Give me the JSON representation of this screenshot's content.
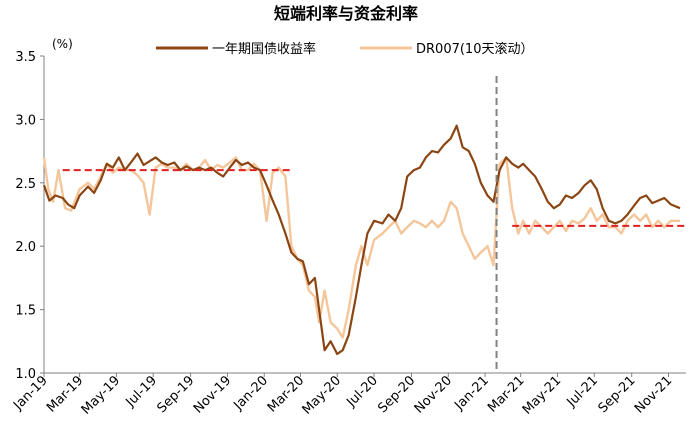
{
  "chart_data": {
    "type": "line",
    "title": "短端利率与资金利率",
    "unit_label": "(%)",
    "ylim": [
      1.0,
      3.5
    ],
    "yticks": [
      "1.0",
      "1.5",
      "2.0",
      "2.5",
      "3.0",
      "3.5"
    ],
    "xlim": [
      "2019-01-01",
      "2021-11-30"
    ],
    "xticks": [
      {
        "label": "Jan-19",
        "date": "2019-01-01"
      },
      {
        "label": "Mar-19",
        "date": "2019-03-01"
      },
      {
        "label": "May-19",
        "date": "2019-05-01"
      },
      {
        "label": "Jul-19",
        "date": "2019-07-01"
      },
      {
        "label": "Sep-19",
        "date": "2019-09-01"
      },
      {
        "label": "Nov-19",
        "date": "2019-11-01"
      },
      {
        "label": "Jan-20",
        "date": "2020-01-01"
      },
      {
        "label": "Mar-20",
        "date": "2020-03-01"
      },
      {
        "label": "May-20",
        "date": "2020-05-01"
      },
      {
        "label": "Jul-20",
        "date": "2020-07-01"
      },
      {
        "label": "Sep-20",
        "date": "2020-09-01"
      },
      {
        "label": "Nov-20",
        "date": "2020-11-01"
      },
      {
        "label": "Jan-21",
        "date": "2021-01-01"
      },
      {
        "label": "Mar-21",
        "date": "2021-03-01"
      },
      {
        "label": "May-21",
        "date": "2021-05-01"
      },
      {
        "label": "Jul-21",
        "date": "2021-07-01"
      },
      {
        "label": "Sep-21",
        "date": "2021-09-01"
      },
      {
        "label": "Nov-21",
        "date": "2021-11-01"
      }
    ],
    "legend_position": "top",
    "grid": false,
    "series": [
      {
        "name": "一年期国债收益率",
        "color": "#8B4513",
        "points": [
          [
            "2019-01-01",
            2.48
          ],
          [
            "2019-01-10",
            2.36
          ],
          [
            "2019-01-20",
            2.4
          ],
          [
            "2019-02-01",
            2.38
          ],
          [
            "2019-02-10",
            2.33
          ],
          [
            "2019-02-20",
            2.3
          ],
          [
            "2019-03-01",
            2.4
          ],
          [
            "2019-03-15",
            2.47
          ],
          [
            "2019-03-25",
            2.42
          ],
          [
            "2019-04-05",
            2.52
          ],
          [
            "2019-04-15",
            2.65
          ],
          [
            "2019-04-25",
            2.62
          ],
          [
            "2019-05-05",
            2.7
          ],
          [
            "2019-05-15",
            2.6
          ],
          [
            "2019-05-25",
            2.66
          ],
          [
            "2019-06-05",
            2.73
          ],
          [
            "2019-06-15",
            2.64
          ],
          [
            "2019-06-25",
            2.67
          ],
          [
            "2019-07-05",
            2.7
          ],
          [
            "2019-07-15",
            2.66
          ],
          [
            "2019-07-25",
            2.64
          ],
          [
            "2019-08-05",
            2.66
          ],
          [
            "2019-08-15",
            2.6
          ],
          [
            "2019-08-25",
            2.63
          ],
          [
            "2019-09-05",
            2.6
          ],
          [
            "2019-09-15",
            2.62
          ],
          [
            "2019-09-25",
            2.6
          ],
          [
            "2019-10-05",
            2.62
          ],
          [
            "2019-10-15",
            2.58
          ],
          [
            "2019-10-25",
            2.55
          ],
          [
            "2019-11-05",
            2.62
          ],
          [
            "2019-11-15",
            2.68
          ],
          [
            "2019-11-25",
            2.64
          ],
          [
            "2019-12-05",
            2.66
          ],
          [
            "2019-12-15",
            2.62
          ],
          [
            "2019-12-25",
            2.6
          ],
          [
            "2020-01-05",
            2.48
          ],
          [
            "2020-01-15",
            2.36
          ],
          [
            "2020-01-25",
            2.25
          ],
          [
            "2020-02-05",
            2.1
          ],
          [
            "2020-02-15",
            1.95
          ],
          [
            "2020-02-25",
            1.9
          ],
          [
            "2020-03-05",
            1.88
          ],
          [
            "2020-03-15",
            1.7
          ],
          [
            "2020-03-25",
            1.75
          ],
          [
            "2020-04-01",
            1.5
          ],
          [
            "2020-04-10",
            1.18
          ],
          [
            "2020-04-20",
            1.25
          ],
          [
            "2020-05-01",
            1.15
          ],
          [
            "2020-05-10",
            1.18
          ],
          [
            "2020-05-20",
            1.3
          ],
          [
            "2020-06-01",
            1.6
          ],
          [
            "2020-06-10",
            1.85
          ],
          [
            "2020-06-20",
            2.1
          ],
          [
            "2020-07-01",
            2.2
          ],
          [
            "2020-07-15",
            2.18
          ],
          [
            "2020-07-25",
            2.25
          ],
          [
            "2020-08-05",
            2.2
          ],
          [
            "2020-08-15",
            2.3
          ],
          [
            "2020-08-25",
            2.55
          ],
          [
            "2020-09-05",
            2.6
          ],
          [
            "2020-09-15",
            2.62
          ],
          [
            "2020-09-25",
            2.7
          ],
          [
            "2020-10-05",
            2.75
          ],
          [
            "2020-10-15",
            2.74
          ],
          [
            "2020-10-25",
            2.8
          ],
          [
            "2020-11-05",
            2.85
          ],
          [
            "2020-11-15",
            2.95
          ],
          [
            "2020-11-25",
            2.78
          ],
          [
            "2020-12-05",
            2.75
          ],
          [
            "2020-12-15",
            2.65
          ],
          [
            "2020-12-25",
            2.5
          ],
          [
            "2021-01-05",
            2.4
          ],
          [
            "2021-01-15",
            2.35
          ],
          [
            "2021-01-25",
            2.6
          ],
          [
            "2021-02-05",
            2.7
          ],
          [
            "2021-02-15",
            2.65
          ],
          [
            "2021-02-25",
            2.62
          ],
          [
            "2021-03-05",
            2.65
          ],
          [
            "2021-03-15",
            2.6
          ],
          [
            "2021-03-25",
            2.55
          ],
          [
            "2021-04-05",
            2.45
          ],
          [
            "2021-04-15",
            2.35
          ],
          [
            "2021-04-25",
            2.3
          ],
          [
            "2021-05-05",
            2.33
          ],
          [
            "2021-05-15",
            2.4
          ],
          [
            "2021-05-25",
            2.38
          ],
          [
            "2021-06-05",
            2.42
          ],
          [
            "2021-06-15",
            2.48
          ],
          [
            "2021-06-25",
            2.52
          ],
          [
            "2021-07-05",
            2.45
          ],
          [
            "2021-07-15",
            2.3
          ],
          [
            "2021-07-25",
            2.2
          ],
          [
            "2021-08-05",
            2.18
          ],
          [
            "2021-08-15",
            2.2
          ],
          [
            "2021-08-25",
            2.25
          ],
          [
            "2021-09-05",
            2.32
          ],
          [
            "2021-09-15",
            2.38
          ],
          [
            "2021-09-25",
            2.4
          ],
          [
            "2021-10-05",
            2.34
          ],
          [
            "2021-10-15",
            2.36
          ],
          [
            "2021-10-25",
            2.38
          ],
          [
            "2021-11-05",
            2.33
          ],
          [
            "2021-11-20",
            2.3
          ]
        ]
      },
      {
        "name": "DR007(10天滚动）",
        "color": "#F5C69A",
        "points": [
          [
            "2019-01-01",
            2.7
          ],
          [
            "2019-01-08",
            2.45
          ],
          [
            "2019-01-16",
            2.35
          ],
          [
            "2019-01-25",
            2.6
          ],
          [
            "2019-02-05",
            2.3
          ],
          [
            "2019-02-15",
            2.28
          ],
          [
            "2019-03-01",
            2.45
          ],
          [
            "2019-03-15",
            2.5
          ],
          [
            "2019-03-25",
            2.45
          ],
          [
            "2019-04-05",
            2.55
          ],
          [
            "2019-04-15",
            2.65
          ],
          [
            "2019-04-25",
            2.58
          ],
          [
            "2019-05-05",
            2.62
          ],
          [
            "2019-05-15",
            2.6
          ],
          [
            "2019-05-25",
            2.6
          ],
          [
            "2019-06-05",
            2.56
          ],
          [
            "2019-06-15",
            2.5
          ],
          [
            "2019-06-25",
            2.25
          ],
          [
            "2019-07-05",
            2.62
          ],
          [
            "2019-07-15",
            2.65
          ],
          [
            "2019-07-25",
            2.62
          ],
          [
            "2019-08-05",
            2.62
          ],
          [
            "2019-08-15",
            2.6
          ],
          [
            "2019-08-25",
            2.65
          ],
          [
            "2019-09-05",
            2.6
          ],
          [
            "2019-09-15",
            2.62
          ],
          [
            "2019-09-25",
            2.68
          ],
          [
            "2019-10-05",
            2.6
          ],
          [
            "2019-10-15",
            2.64
          ],
          [
            "2019-10-25",
            2.62
          ],
          [
            "2019-11-05",
            2.66
          ],
          [
            "2019-11-15",
            2.7
          ],
          [
            "2019-11-25",
            2.6
          ],
          [
            "2019-12-05",
            2.6
          ],
          [
            "2019-12-15",
            2.65
          ],
          [
            "2019-12-25",
            2.6
          ],
          [
            "2020-01-05",
            2.2
          ],
          [
            "2020-01-15",
            2.58
          ],
          [
            "2020-01-25",
            2.62
          ],
          [
            "2020-02-05",
            2.55
          ],
          [
            "2020-02-15",
            2.0
          ],
          [
            "2020-02-25",
            1.9
          ],
          [
            "2020-03-05",
            1.85
          ],
          [
            "2020-03-15",
            1.65
          ],
          [
            "2020-03-25",
            1.6
          ],
          [
            "2020-04-01",
            1.4
          ],
          [
            "2020-04-10",
            1.65
          ],
          [
            "2020-04-20",
            1.4
          ],
          [
            "2020-05-01",
            1.35
          ],
          [
            "2020-05-10",
            1.28
          ],
          [
            "2020-05-20",
            1.5
          ],
          [
            "2020-06-01",
            1.85
          ],
          [
            "2020-06-10",
            2.0
          ],
          [
            "2020-06-20",
            1.85
          ],
          [
            "2020-07-01",
            2.05
          ],
          [
            "2020-07-15",
            2.1
          ],
          [
            "2020-07-25",
            2.15
          ],
          [
            "2020-08-05",
            2.2
          ],
          [
            "2020-08-15",
            2.1
          ],
          [
            "2020-08-25",
            2.15
          ],
          [
            "2020-09-05",
            2.2
          ],
          [
            "2020-09-15",
            2.18
          ],
          [
            "2020-09-25",
            2.15
          ],
          [
            "2020-10-05",
            2.2
          ],
          [
            "2020-10-15",
            2.15
          ],
          [
            "2020-10-25",
            2.2
          ],
          [
            "2020-11-05",
            2.35
          ],
          [
            "2020-11-15",
            2.3
          ],
          [
            "2020-11-25",
            2.1
          ],
          [
            "2020-12-05",
            2.0
          ],
          [
            "2020-12-15",
            1.9
          ],
          [
            "2020-12-25",
            1.95
          ],
          [
            "2021-01-05",
            2.0
          ],
          [
            "2021-01-15",
            1.85
          ],
          [
            "2021-01-25",
            2.65
          ],
          [
            "2021-02-05",
            2.7
          ],
          [
            "2021-02-15",
            2.3
          ],
          [
            "2021-02-25",
            2.1
          ],
          [
            "2021-03-05",
            2.2
          ],
          [
            "2021-03-15",
            2.1
          ],
          [
            "2021-03-25",
            2.2
          ],
          [
            "2021-04-05",
            2.15
          ],
          [
            "2021-04-15",
            2.1
          ],
          [
            "2021-04-25",
            2.15
          ],
          [
            "2021-05-05",
            2.2
          ],
          [
            "2021-05-15",
            2.12
          ],
          [
            "2021-05-25",
            2.2
          ],
          [
            "2021-06-05",
            2.18
          ],
          [
            "2021-06-15",
            2.22
          ],
          [
            "2021-06-25",
            2.3
          ],
          [
            "2021-07-05",
            2.2
          ],
          [
            "2021-07-15",
            2.25
          ],
          [
            "2021-07-25",
            2.15
          ],
          [
            "2021-08-05",
            2.15
          ],
          [
            "2021-08-15",
            2.1
          ],
          [
            "2021-08-25",
            2.2
          ],
          [
            "2021-09-05",
            2.25
          ],
          [
            "2021-09-15",
            2.2
          ],
          [
            "2021-09-25",
            2.25
          ],
          [
            "2021-10-05",
            2.15
          ],
          [
            "2021-10-15",
            2.2
          ],
          [
            "2021-10-25",
            2.15
          ],
          [
            "2021-11-05",
            2.2
          ],
          [
            "2021-11-20",
            2.2
          ]
        ]
      }
    ],
    "reference_lines": [
      {
        "type": "hline",
        "value": 2.6,
        "from": "2019-02-01",
        "to": "2020-02-15",
        "color": "#E02020",
        "style": "dashed"
      },
      {
        "type": "hline",
        "value": 2.16,
        "from": "2021-02-15",
        "to": "2021-11-30",
        "color": "#E02020",
        "style": "dashed"
      },
      {
        "type": "vline",
        "value": "2021-01-20",
        "color": "#808080",
        "style": "dashed"
      }
    ]
  }
}
